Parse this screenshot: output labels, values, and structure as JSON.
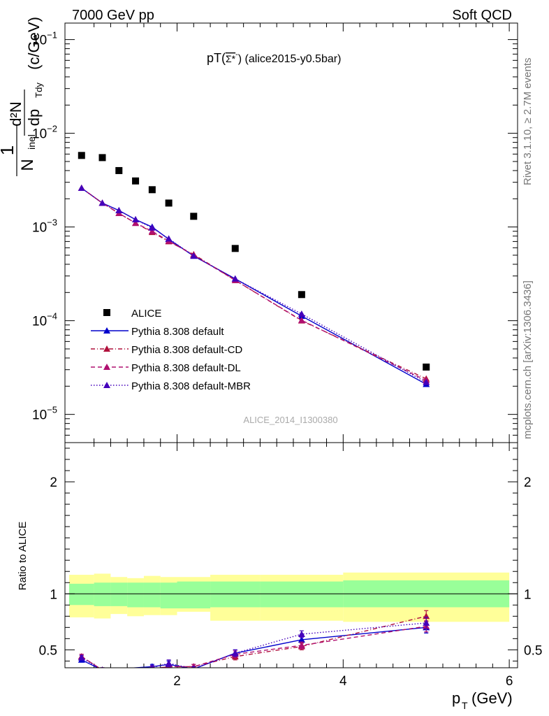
{
  "header": {
    "left": "7000 GeV pp",
    "right": "Soft QCD"
  },
  "side_labels": {
    "rivet": "Rivet 3.1.10, ≥ 2.7M events",
    "mcplots": "mcplots.cern.ch [arXiv:1306.3436]"
  },
  "chart_data": [
    {
      "type": "scatter",
      "title": "pT(Σ*̄⁻) (alice2015-y0.5bar)",
      "title_main": "pT(",
      "title_particle": "Σ*",
      "title_tail": ") (alice2015-y0.5bar)",
      "watermark": "ALICE_2014_I1300380",
      "ylabel": "1/N_inel d²N/dp_T dy (c/GeV)",
      "yscale": "log",
      "ylim": [
        5e-06,
        0.15
      ],
      "xlim": [
        0.65,
        6.1
      ],
      "y_ticks": [
        {
          "value": 1e-05,
          "mantissa": "10",
          "exp": "−5"
        },
        {
          "value": 0.0001,
          "mantissa": "10",
          "exp": "−4"
        },
        {
          "value": 0.001,
          "mantissa": "10",
          "exp": "−3"
        },
        {
          "value": 0.01,
          "mantissa": "10",
          "exp": "−2"
        },
        {
          "value": 0.1,
          "mantissa": "10",
          "exp": "−1"
        }
      ],
      "legend_position": "bottom-left",
      "series": [
        {
          "name": "ALICE",
          "color": "#000000",
          "style": "marker-square",
          "x": [
            0.85,
            1.1,
            1.3,
            1.5,
            1.7,
            1.9,
            2.2,
            2.7,
            3.5,
            5.0
          ],
          "y": [
            0.0058,
            0.0055,
            0.004,
            0.0031,
            0.0025,
            0.0018,
            0.0013,
            0.00059,
            0.00019,
            3.2e-05
          ]
        },
        {
          "name": "Pythia 8.308 default",
          "color": "#0000cc",
          "style": "solid",
          "x": [
            0.85,
            1.1,
            1.3,
            1.5,
            1.7,
            1.9,
            2.2,
            2.7,
            3.5,
            5.0
          ],
          "y": [
            0.0026,
            0.0018,
            0.0015,
            0.0012,
            0.001,
            0.00074,
            0.00049,
            0.00028,
            0.000112,
            2.1e-05
          ]
        },
        {
          "name": "Pythia 8.308 default-CD",
          "color": "#b0103c",
          "style": "dashdot",
          "x": [
            0.85,
            1.1,
            1.3,
            1.5,
            1.7,
            1.9,
            2.2,
            2.7,
            3.5,
            5.0
          ],
          "y": [
            0.0026,
            0.0018,
            0.0014,
            0.0011,
            0.00088,
            0.0007,
            0.00051,
            0.00027,
            0.0001,
            2.4e-05
          ]
        },
        {
          "name": "Pythia 8.308 default-DL",
          "color": "#b01070",
          "style": "dashed",
          "x": [
            0.85,
            1.1,
            1.3,
            1.5,
            1.7,
            1.9,
            2.2,
            2.7,
            3.5,
            5.0
          ],
          "y": [
            0.0026,
            0.0018,
            0.0014,
            0.0011,
            0.0009,
            0.00071,
            0.0005,
            0.00027,
            0.000101,
            2.3e-05
          ]
        },
        {
          "name": "Pythia 8.308 default-MBR",
          "color": "#4400bb",
          "style": "dotted",
          "x": [
            0.85,
            1.1,
            1.3,
            1.5,
            1.7,
            1.9,
            2.2,
            2.7,
            3.5,
            5.0
          ],
          "y": [
            0.0026,
            0.0018,
            0.0015,
            0.0012,
            0.00098,
            0.00075,
            0.00049,
            0.00028,
            0.000118,
            2.2e-05
          ]
        }
      ]
    },
    {
      "type": "line",
      "ylabel": "Ratio to ALICE",
      "xlabel": "p_T (GeV)",
      "xlim": [
        0.65,
        6.1
      ],
      "ylim": [
        0.34,
        2.35
      ],
      "x_ticks": [
        2,
        4,
        6
      ],
      "y_ticks": [
        0.5,
        1,
        2
      ],
      "bands": {
        "edges": [
          0.7,
          1.0,
          1.2,
          1.4,
          1.6,
          1.8,
          2.0,
          2.4,
          3.0,
          4.0,
          6.0
        ],
        "inner_color": "#99ff99",
        "outer_color": "#ffff99",
        "inner_lo": [
          0.9,
          0.89,
          0.89,
          0.88,
          0.88,
          0.87,
          0.87,
          0.88,
          0.88,
          0.88
        ],
        "inner_hi": [
          1.09,
          1.1,
          1.1,
          1.1,
          1.1,
          1.1,
          1.11,
          1.11,
          1.11,
          1.12
        ],
        "outer_lo": [
          0.79,
          0.78,
          0.82,
          0.8,
          0.81,
          0.81,
          0.84,
          0.76,
          0.76,
          0.75
        ],
        "outer_hi": [
          1.17,
          1.18,
          1.15,
          1.14,
          1.16,
          1.15,
          1.15,
          1.17,
          1.17,
          1.19
        ]
      },
      "series": [
        {
          "name": "Pythia 8.308 default",
          "color": "#0000cc",
          "style": "solid",
          "x": [
            0.85,
            1.1,
            1.7,
            1.9,
            2.2,
            2.7,
            3.5,
            5.0
          ],
          "y": [
            0.41,
            0.32,
            0.35,
            0.37,
            0.33,
            0.47,
            0.59,
            0.7
          ],
          "err": [
            0.02,
            0.02,
            0.02,
            0.03,
            0.02,
            0.03,
            0.03,
            0.05
          ]
        },
        {
          "name": "Pythia 8.308 default-CD",
          "color": "#b0103c",
          "style": "dashdot",
          "x": [
            0.85,
            1.1,
            1.7,
            1.9,
            2.2,
            2.7,
            3.5,
            5.0
          ],
          "y": [
            0.44,
            0.32,
            0.33,
            0.35,
            0.35,
            0.44,
            0.53,
            0.8
          ],
          "err": [
            0.02,
            0.02,
            0.02,
            0.02,
            0.02,
            0.03,
            0.03,
            0.05
          ]
        },
        {
          "name": "Pythia 8.308 default-DL",
          "color": "#b01070",
          "style": "dashed",
          "x": [
            0.85,
            1.1,
            1.7,
            1.9,
            2.2,
            2.7,
            3.5,
            5.0
          ],
          "y": [
            0.44,
            0.32,
            0.33,
            0.35,
            0.35,
            0.46,
            0.54,
            0.71
          ],
          "err": [
            0.02,
            0.02,
            0.02,
            0.02,
            0.02,
            0.03,
            0.03,
            0.05
          ]
        },
        {
          "name": "Pythia 8.308 default-MBR",
          "color": "#4400bb",
          "style": "dotted",
          "x": [
            0.85,
            1.1,
            1.7,
            1.9,
            2.2,
            2.7,
            3.5,
            5.0
          ],
          "y": [
            0.43,
            0.32,
            0.34,
            0.38,
            0.33,
            0.47,
            0.64,
            0.74
          ],
          "err": [
            0.02,
            0.02,
            0.02,
            0.03,
            0.02,
            0.03,
            0.03,
            0.05
          ]
        }
      ]
    }
  ]
}
